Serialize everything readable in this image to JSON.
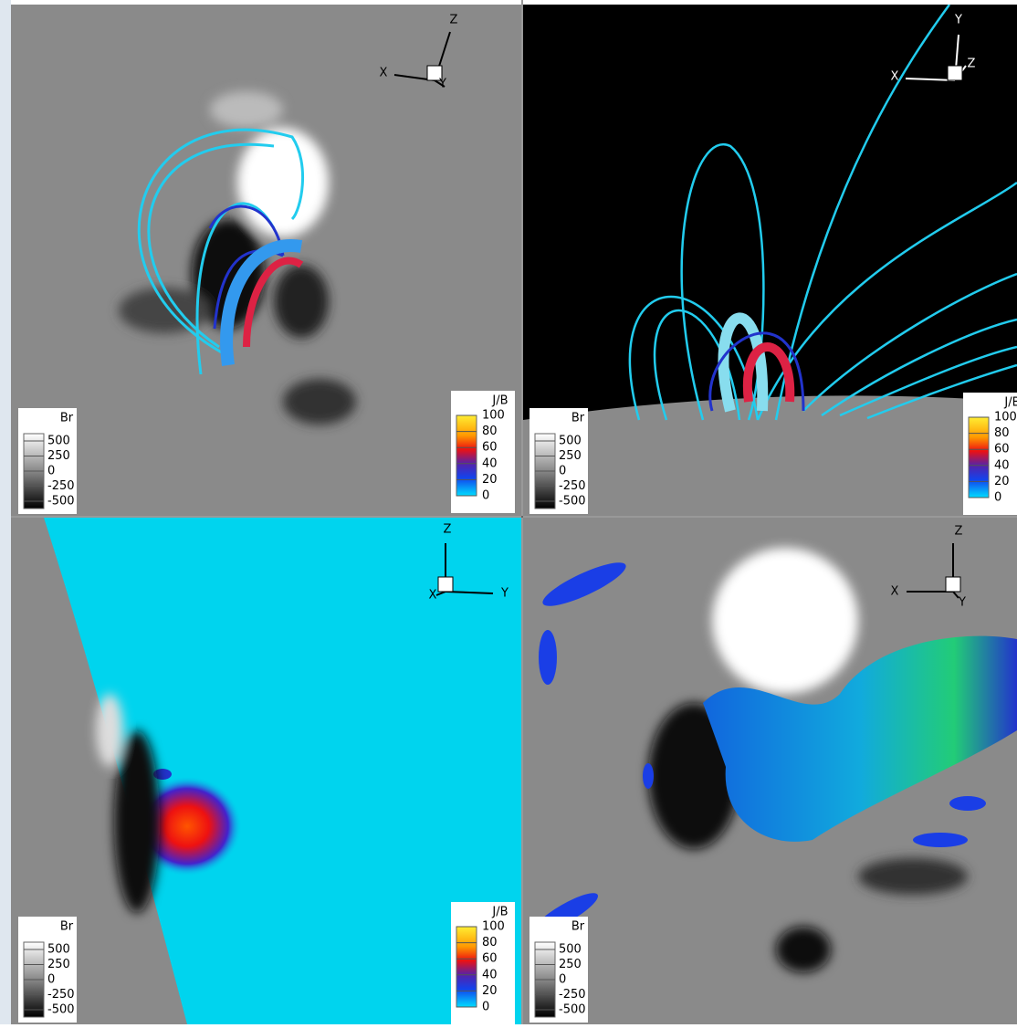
{
  "panels": [
    {
      "axes": [
        "Z",
        "X",
        "Y"
      ],
      "colorbars": [
        {
          "title": "Br",
          "ticks": [
            500,
            250,
            0,
            -250,
            -500
          ]
        },
        {
          "title": "J/B",
          "ticks": [
            100,
            80,
            60,
            40,
            20,
            0
          ]
        }
      ]
    },
    {
      "axes": [
        "Y",
        "X",
        "Z"
      ],
      "colorbars": [
        {
          "title": "Br",
          "ticks": [
            500,
            250,
            0,
            -250,
            -500
          ]
        },
        {
          "title": "J/B",
          "ticks": [
            100,
            80,
            60,
            40,
            20,
            0
          ]
        }
      ]
    },
    {
      "axes": [
        "Z",
        "X",
        "Y"
      ],
      "colorbars": [
        {
          "title": "Br",
          "ticks": [
            500,
            250,
            0,
            -250,
            -500
          ]
        },
        {
          "title": "J/B",
          "ticks": [
            100,
            80,
            60,
            40,
            20,
            0
          ]
        }
      ]
    },
    {
      "axes": [
        "Z",
        "X",
        "Y"
      ],
      "colorbars": [
        {
          "title": "Br",
          "ticks": [
            500,
            250,
            0,
            -250,
            -500
          ]
        }
      ]
    }
  ]
}
